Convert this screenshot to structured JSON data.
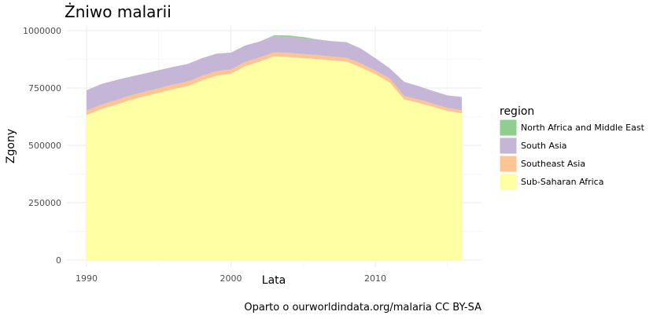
{
  "chart_data": {
    "type": "area",
    "stacked": true,
    "title": "Żniwo malarii",
    "xlabel": "Lata",
    "ylabel": "Zgony",
    "caption": "Oparto o ourworldindata.org/malaria CC BY-SA",
    "legend_title": "region",
    "legend_position": "right",
    "grid": true,
    "xlim": [
      1990,
      2016
    ],
    "ylim": [
      0,
      1000000
    ],
    "x_ticks": [
      1990,
      2000,
      2010
    ],
    "x_tick_labels": [
      "1990",
      "2000",
      "2010"
    ],
    "y_ticks": [
      0,
      250000,
      500000,
      750000,
      1000000
    ],
    "y_tick_labels": [
      "0",
      "250000",
      "500000",
      "750000",
      "1000000"
    ],
    "x": [
      1990,
      1991,
      1992,
      1993,
      1994,
      1995,
      1996,
      1997,
      1998,
      1999,
      2000,
      2001,
      2002,
      2003,
      2004,
      2005,
      2006,
      2007,
      2008,
      2009,
      2010,
      2011,
      2012,
      2013,
      2014,
      2015,
      2016
    ],
    "series": [
      {
        "name": "Sub-Saharan Africa",
        "color": "#ffffa3",
        "values": [
          632000,
          657000,
          676000,
          697000,
          713000,
          729000,
          745000,
          758000,
          783000,
          803000,
          812000,
          845000,
          865000,
          888000,
          885000,
          880000,
          876000,
          870000,
          865000,
          840000,
          810000,
          775000,
          700000,
          685000,
          668000,
          650000,
          640000
        ]
      },
      {
        "name": "Southeast Asia",
        "color": "#fdc591",
        "values": [
          20000,
          20000,
          20000,
          20000,
          20000,
          20000,
          20000,
          20000,
          20000,
          20000,
          19000,
          19000,
          18000,
          18000,
          18000,
          18000,
          18000,
          17000,
          17000,
          17000,
          16000,
          16000,
          15000,
          15000,
          14000,
          13000,
          13000
        ]
      },
      {
        "name": "South Asia",
        "color": "#c5b6d8",
        "values": [
          88000,
          90000,
          88000,
          82000,
          80000,
          79000,
          77000,
          77000,
          77000,
          77000,
          73000,
          72000,
          70000,
          70000,
          70000,
          68000,
          68000,
          67000,
          68000,
          65000,
          54000,
          45000,
          62000,
          58000,
          55000,
          55000,
          58000
        ]
      },
      {
        "name": "North Africa and Middle East",
        "color": "#8fce8f",
        "values": [
          0,
          0,
          0,
          0,
          0,
          0,
          0,
          0,
          0,
          0,
          0,
          0,
          0,
          4000,
          6000,
          6000,
          0,
          0,
          0,
          0,
          0,
          0,
          0,
          0,
          0,
          0,
          0
        ]
      }
    ],
    "legend_order": [
      "North Africa and Middle East",
      "South Asia",
      "Southeast Asia",
      "Sub-Saharan Africa"
    ]
  }
}
